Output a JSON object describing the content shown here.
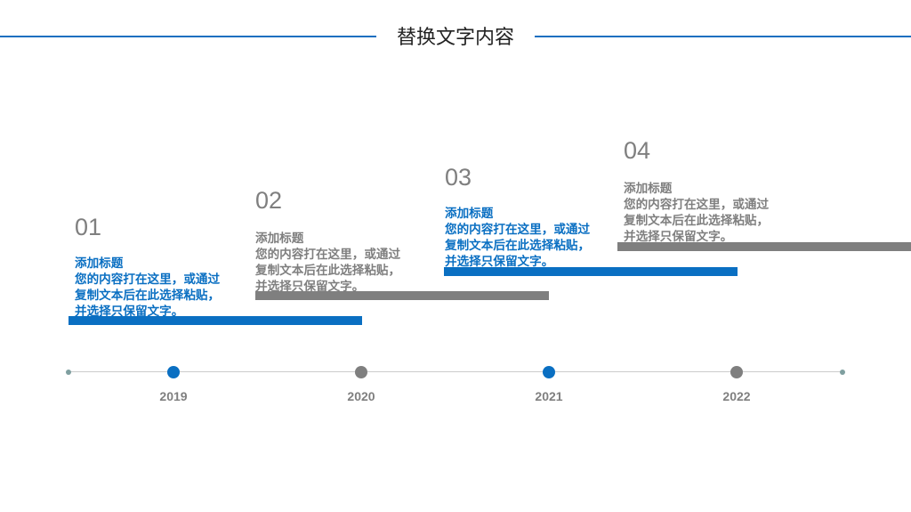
{
  "header": {
    "title": "替换文字内容"
  },
  "timeline": {
    "items": [
      {
        "number": "01",
        "heading": "添加标题",
        "body": "您的内容打在这里，或通过复制文本后在此选择粘贴，并选择只保留文字。",
        "year": "2019"
      },
      {
        "number": "02",
        "heading": "添加标题",
        "body": "您的内容打在这里，或通过复制文本后在此选择粘贴，并选择只保留文字。",
        "year": "2020"
      },
      {
        "number": "03",
        "heading": "添加标题",
        "body": "您的内容打在这里，或通过复制文本后在此选择粘贴，并选择只保留文字。",
        "year": "2021"
      },
      {
        "number": "04",
        "heading": "添加标题",
        "body": "您的内容打在这里，或通过复制文本后在此选择粘贴，并选择只保留文字。",
        "year": "2022"
      }
    ]
  }
}
